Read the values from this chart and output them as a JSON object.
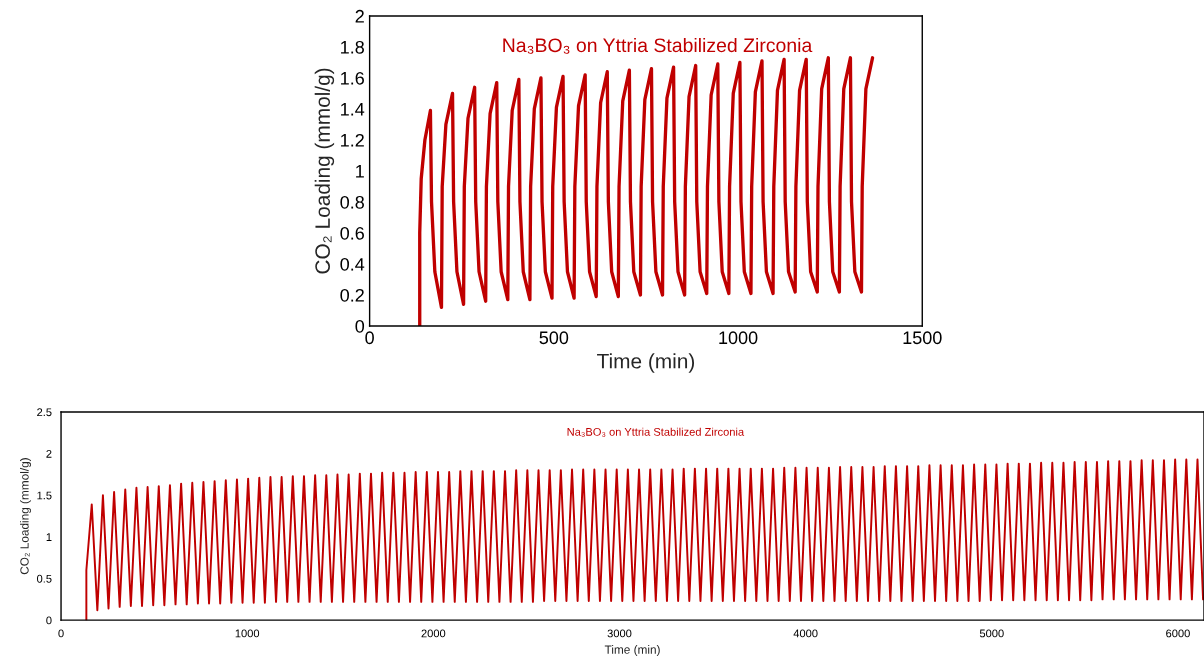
{
  "chart_data": [
    {
      "type": "line",
      "title": "Na₃BO₃ on Yttria Stabilized Zirconia",
      "xlabel": "Time (min)",
      "ylabel": "CO₂ Loading (mmol/g)",
      "grid": false,
      "xlim": [
        0,
        1500
      ],
      "ylim": [
        0,
        2
      ],
      "xticks": [
        0,
        500,
        1000,
        1500
      ],
      "yticks": [
        0,
        0.2,
        0.4,
        0.6,
        0.8,
        1,
        1.2,
        1.4,
        1.6,
        1.8,
        2
      ],
      "x": [
        136,
        136,
        140,
        150,
        165,
        168,
        177,
        195,
        197,
        207,
        225,
        228,
        237,
        255,
        257,
        267,
        285,
        288,
        297,
        315,
        317,
        327,
        345,
        348,
        357,
        375,
        377,
        387,
        405,
        408,
        417,
        435,
        437,
        447,
        465,
        468,
        477,
        495,
        497,
        507,
        525,
        528,
        537,
        555,
        557,
        567,
        585,
        588,
        597,
        615,
        617,
        627,
        645,
        648,
        657,
        675,
        677,
        687,
        705,
        708,
        717,
        735,
        737,
        747,
        765,
        768,
        777,
        795,
        797,
        807,
        825,
        828,
        837,
        855,
        857,
        867,
        885,
        888,
        897,
        915,
        917,
        927,
        945,
        948,
        957,
        975,
        977,
        987,
        1005,
        1008,
        1017,
        1035,
        1037,
        1047,
        1065,
        1068,
        1077,
        1095,
        1097,
        1107,
        1125,
        1128,
        1137,
        1155,
        1157,
        1167,
        1185,
        1188,
        1197,
        1215,
        1217,
        1227,
        1245,
        1248,
        1257,
        1275,
        1277,
        1287,
        1305,
        1308,
        1317,
        1335,
        1337,
        1347,
        1365
      ],
      "series": [
        {
          "color": "#c00000",
          "values": [
            0,
            0.6,
            0.95,
            1.2,
            1.39,
            0.8,
            0.35,
            0.12,
            0.9,
            1.3,
            1.5,
            0.8,
            0.35,
            0.14,
            0.9,
            1.34,
            1.54,
            0.8,
            0.35,
            0.16,
            0.9,
            1.37,
            1.57,
            0.8,
            0.35,
            0.17,
            0.9,
            1.39,
            1.59,
            0.8,
            0.35,
            0.17,
            0.9,
            1.4,
            1.6,
            0.8,
            0.35,
            0.18,
            0.9,
            1.41,
            1.61,
            0.8,
            0.35,
            0.18,
            0.9,
            1.42,
            1.62,
            0.8,
            0.35,
            0.19,
            0.9,
            1.44,
            1.64,
            0.8,
            0.35,
            0.19,
            0.9,
            1.45,
            1.65,
            0.8,
            0.35,
            0.2,
            0.9,
            1.46,
            1.66,
            0.8,
            0.35,
            0.2,
            0.9,
            1.47,
            1.67,
            0.8,
            0.35,
            0.2,
            0.9,
            1.48,
            1.68,
            0.8,
            0.35,
            0.21,
            0.9,
            1.49,
            1.69,
            0.8,
            0.35,
            0.21,
            0.9,
            1.5,
            1.7,
            0.8,
            0.35,
            0.21,
            0.9,
            1.51,
            1.71,
            0.8,
            0.35,
            0.21,
            0.9,
            1.52,
            1.72,
            0.8,
            0.35,
            0.22,
            0.9,
            1.52,
            1.72,
            0.8,
            0.35,
            0.22,
            0.9,
            1.53,
            1.73,
            0.8,
            0.35,
            0.22,
            0.9,
            1.53,
            1.73,
            0.8,
            0.35,
            0.22,
            0.9,
            1.53,
            1.73
          ]
        }
      ]
    },
    {
      "type": "line",
      "title": "Na₃BO₃ on Yttria Stabilized Zirconia",
      "xlabel": "Time (min)",
      "ylabel": "CO₂ Loading (mmol/g)",
      "grid": false,
      "xlim": [
        0,
        6140
      ],
      "ylim": [
        0,
        2.5
      ],
      "xticks": [
        0,
        1000,
        2000,
        3000,
        4000,
        5000,
        6000
      ],
      "yticks": [
        0,
        0.5,
        1,
        1.5,
        2,
        2.5
      ],
      "x": [
        136,
        136,
        165,
        195,
        225,
        255,
        285,
        315,
        345,
        375,
        405,
        435,
        465,
        495,
        525,
        555,
        585,
        615,
        645,
        675,
        705,
        735,
        765,
        795,
        825,
        855,
        885,
        915,
        945,
        975,
        1005,
        1035,
        1065,
        1095,
        1125,
        1155,
        1185,
        1215,
        1245,
        1275,
        1305,
        1335,
        1365,
        1395,
        1425,
        1455,
        1485,
        1515,
        1545,
        1575,
        1605,
        1635,
        1665,
        1695,
        1725,
        1755,
        1785,
        1815,
        1845,
        1875,
        1905,
        1935,
        1965,
        1995,
        2025,
        2055,
        2085,
        2115,
        2145,
        2175,
        2205,
        2235,
        2265,
        2295,
        2325,
        2355,
        2385,
        2415,
        2445,
        2475,
        2505,
        2535,
        2565,
        2595,
        2625,
        2655,
        2685,
        2715,
        2745,
        2775,
        2805,
        2835,
        2865,
        2895,
        2925,
        2955,
        2985,
        3015,
        3045,
        3075,
        3105,
        3135,
        3165,
        3195,
        3225,
        3255,
        3285,
        3315,
        3345,
        3375,
        3405,
        3435,
        3465,
        3495,
        3525,
        3555,
        3585,
        3615,
        3645,
        3675,
        3705,
        3735,
        3765,
        3795,
        3825,
        3855,
        3885,
        3915,
        3945,
        3975,
        4005,
        4035,
        4065,
        4095,
        4125,
        4155,
        4185,
        4215,
        4245,
        4275,
        4305,
        4335,
        4365,
        4395,
        4425,
        4455,
        4485,
        4515,
        4545,
        4575,
        4605,
        4635,
        4665,
        4695,
        4725,
        4755,
        4785,
        4815,
        4845,
        4875,
        4905,
        4935,
        4965,
        4995,
        5025,
        5055,
        5085,
        5115,
        5145,
        5175,
        5205,
        5235,
        5265,
        5295,
        5325,
        5355,
        5385,
        5415,
        5445,
        5475,
        5505,
        5535,
        5565,
        5595,
        5625,
        5655,
        5685,
        5715,
        5745,
        5775,
        5805,
        5835,
        5865,
        5895,
        5925,
        5955,
        5985,
        6015,
        6045,
        6075,
        6105,
        6135
      ],
      "series": [
        {
          "color": "#c00000",
          "values": [
            0,
            0.6,
            1.39,
            0.12,
            1.5,
            0.14,
            1.54,
            0.16,
            1.57,
            0.17,
            1.59,
            0.17,
            1.6,
            0.18,
            1.61,
            0.18,
            1.62,
            0.19,
            1.64,
            0.19,
            1.65,
            0.2,
            1.66,
            0.2,
            1.67,
            0.2,
            1.68,
            0.21,
            1.69,
            0.21,
            1.7,
            0.21,
            1.71,
            0.21,
            1.72,
            0.22,
            1.72,
            0.22,
            1.73,
            0.22,
            1.73,
            0.22,
            1.74,
            0.22,
            1.74,
            0.22,
            1.75,
            0.22,
            1.75,
            0.22,
            1.76,
            0.22,
            1.76,
            0.22,
            1.77,
            0.22,
            1.77,
            0.22,
            1.77,
            0.22,
            1.78,
            0.22,
            1.78,
            0.22,
            1.78,
            0.22,
            1.78,
            0.22,
            1.79,
            0.22,
            1.79,
            0.22,
            1.79,
            0.22,
            1.79,
            0.22,
            1.79,
            0.22,
            1.8,
            0.22,
            1.8,
            0.22,
            1.8,
            0.23,
            1.8,
            0.23,
            1.8,
            0.23,
            1.81,
            0.23,
            1.81,
            0.23,
            1.81,
            0.23,
            1.81,
            0.23,
            1.81,
            0.23,
            1.81,
            0.23,
            1.81,
            0.23,
            1.81,
            0.23,
            1.81,
            0.23,
            1.81,
            0.23,
            1.82,
            0.23,
            1.82,
            0.23,
            1.82,
            0.23,
            1.82,
            0.23,
            1.82,
            0.23,
            1.82,
            0.23,
            1.82,
            0.23,
            1.82,
            0.23,
            1.82,
            0.23,
            1.83,
            0.23,
            1.83,
            0.23,
            1.83,
            0.23,
            1.83,
            0.23,
            1.83,
            0.23,
            1.84,
            0.23,
            1.84,
            0.23,
            1.84,
            0.23,
            1.84,
            0.23,
            1.85,
            0.23,
            1.85,
            0.23,
            1.85,
            0.23,
            1.85,
            0.23,
            1.86,
            0.23,
            1.86,
            0.23,
            1.86,
            0.23,
            1.86,
            0.23,
            1.87,
            0.23,
            1.87,
            0.24,
            1.87,
            0.24,
            1.88,
            0.24,
            1.88,
            0.24,
            1.88,
            0.24,
            1.89,
            0.24,
            1.89,
            0.24,
            1.89,
            0.24,
            1.9,
            0.24,
            1.9,
            0.24,
            1.9,
            0.25,
            1.91,
            0.25,
            1.91,
            0.25,
            1.91,
            0.25,
            1.92,
            0.25,
            1.92,
            0.25,
            1.92,
            0.25,
            1.93,
            0.25,
            1.93,
            0.25,
            1.93,
            0.25
          ]
        }
      ]
    }
  ]
}
